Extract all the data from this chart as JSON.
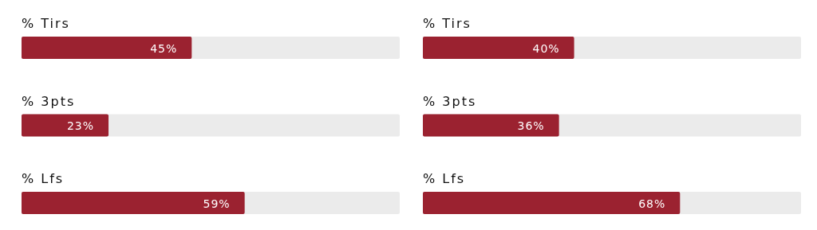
{
  "chart_data": [
    {
      "type": "bar",
      "orientation": "horizontal",
      "categories": [
        "% Tirs",
        "% 3pts",
        "% Lfs"
      ],
      "values": [
        45,
        23,
        59
      ],
      "value_labels": [
        "45%",
        "23%",
        "59%"
      ],
      "color": "#9b2230",
      "xlim": [
        0,
        100
      ],
      "tick_labels": false
    },
    {
      "type": "bar",
      "orientation": "horizontal",
      "categories": [
        "% Tirs",
        "% 3pts",
        "% Lfs"
      ],
      "values": [
        40,
        36,
        68
      ],
      "value_labels": [
        "40%",
        "36%",
        "68%"
      ],
      "color": "#9b2230",
      "xlim": [
        0,
        100
      ],
      "tick_labels": false
    }
  ]
}
